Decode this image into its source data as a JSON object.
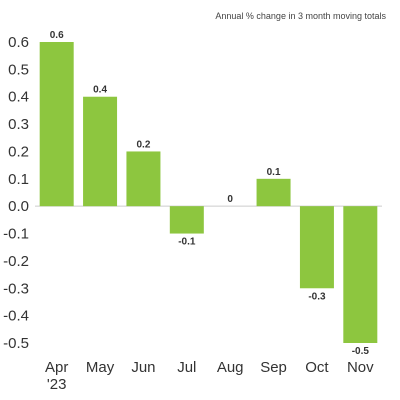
{
  "chart_data": {
    "type": "bar",
    "title": "",
    "subtitle": "Annual % change in 3 month moving totals",
    "xlabel": "",
    "ylabel": "",
    "categories": [
      "Apr",
      "May",
      "Jun",
      "Jul",
      "Aug",
      "Sep",
      "Oct",
      "Nov"
    ],
    "category_sublabels": [
      "'23",
      "",
      "",
      "",
      "",
      "",
      "",
      ""
    ],
    "values": [
      0.6,
      0.4,
      0.2,
      -0.1,
      0,
      0.1,
      -0.3,
      -0.5
    ],
    "data_labels": [
      "0.6",
      "0.4",
      "0.2",
      "-0.1",
      "0",
      "0.1",
      "-0.3",
      "-0.5"
    ],
    "ylim": [
      -0.5,
      0.6
    ],
    "yticks": [
      0.6,
      0.5,
      0.4,
      0.3,
      0.2,
      0.1,
      0.0,
      -0.1,
      -0.2,
      -0.3,
      -0.4,
      -0.5
    ],
    "ytick_labels": [
      "0.6",
      "0.5",
      "0.4",
      "0.3",
      "0.2",
      "0.1",
      "0.0",
      "-0.1",
      "-0.2",
      "-0.3",
      "-0.4",
      "-0.5"
    ],
    "grid": false,
    "legend": "none",
    "colors": {
      "bar": "#8dc63f",
      "axis": "#cccccc",
      "text": "#333333"
    }
  }
}
